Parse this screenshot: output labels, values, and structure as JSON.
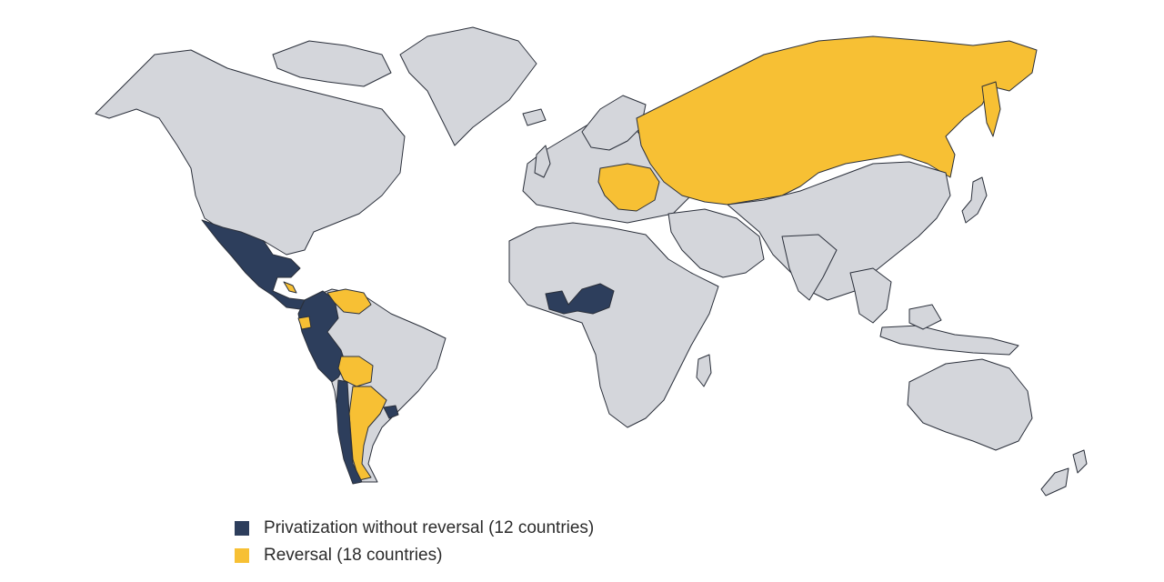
{
  "colors": {
    "privatization": "#2d3e5c",
    "reversal": "#f7c034",
    "other": "#d4d6db",
    "border": "#2a2f3a"
  },
  "legend": [
    {
      "category": "privatization",
      "label": "Privatization without reversal (12 countries)"
    },
    {
      "category": "reversal",
      "label": "Reversal (18 countries)"
    }
  ]
}
